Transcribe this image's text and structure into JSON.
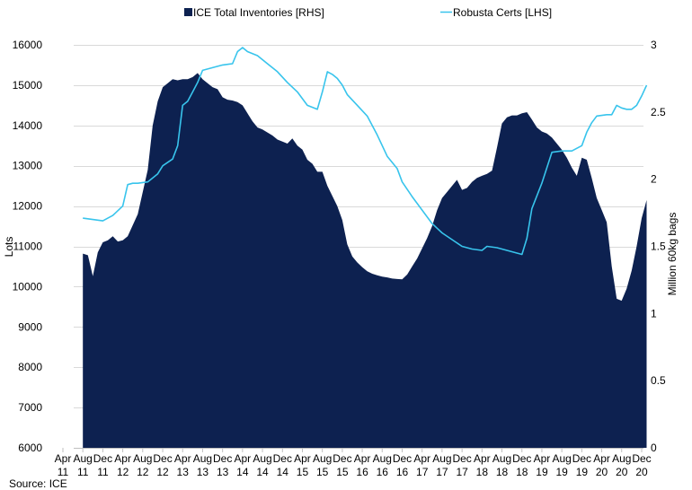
{
  "chart_data": {
    "type": "area",
    "source": "Source: ICE",
    "legend": {
      "placement": "top",
      "entries": [
        {
          "label": "ICE Total Inventories [RHS]",
          "color": "#0d2150",
          "kind": "area"
        },
        {
          "label": "Robusta Certs [LHS]",
          "color": "#38c4ec",
          "kind": "line"
        }
      ]
    },
    "left_axis": {
      "label": "Lots",
      "min": 6000,
      "max": 16000,
      "ticks": [
        6000,
        7000,
        8000,
        9000,
        10000,
        11000,
        12000,
        13000,
        14000,
        15000,
        16000
      ]
    },
    "right_axis": {
      "label": "Million 60kg bags",
      "min": 0,
      "max": 3,
      "ticks": [
        0,
        0.5,
        1,
        1.5,
        2,
        2.5,
        3
      ]
    },
    "x_axis": {
      "start": 2011.25,
      "end": 2020.917,
      "ticks": [
        {
          "month": "Apr",
          "year": "11",
          "t": 2011.25
        },
        {
          "month": "Aug",
          "year": "11",
          "t": 2011.583
        },
        {
          "month": "Dec",
          "year": "11",
          "t": 2011.917
        },
        {
          "month": "Apr",
          "year": "12",
          "t": 2012.25
        },
        {
          "month": "Aug",
          "year": "12",
          "t": 2012.583
        },
        {
          "month": "Dec",
          "year": "12",
          "t": 2012.917
        },
        {
          "month": "Apr",
          "year": "13",
          "t": 2013.25
        },
        {
          "month": "Aug",
          "year": "13",
          "t": 2013.583
        },
        {
          "month": "Dec",
          "year": "13",
          "t": 2013.917
        },
        {
          "month": "Apr",
          "year": "14",
          "t": 2014.25
        },
        {
          "month": "Aug",
          "year": "14",
          "t": 2014.583
        },
        {
          "month": "Dec",
          "year": "14",
          "t": 2014.917
        },
        {
          "month": "Apr",
          "year": "15",
          "t": 2015.25
        },
        {
          "month": "Aug",
          "year": "15",
          "t": 2015.583
        },
        {
          "month": "Dec",
          "year": "15",
          "t": 2015.917
        },
        {
          "month": "Apr",
          "year": "16",
          "t": 2016.25
        },
        {
          "month": "Aug",
          "year": "16",
          "t": 2016.583
        },
        {
          "month": "Dec",
          "year": "16",
          "t": 2016.917
        },
        {
          "month": "Apr",
          "year": "17",
          "t": 2017.25
        },
        {
          "month": "Aug",
          "year": "17",
          "t": 2017.583
        },
        {
          "month": "Dec",
          "year": "17",
          "t": 2017.917
        },
        {
          "month": "Apr",
          "year": "18",
          "t": 2018.25
        },
        {
          "month": "Aug",
          "year": "18",
          "t": 2018.583
        },
        {
          "month": "Dec",
          "year": "18",
          "t": 2018.917
        },
        {
          "month": "Apr",
          "year": "19",
          "t": 2019.25
        },
        {
          "month": "Aug",
          "year": "19",
          "t": 2019.583
        },
        {
          "month": "Dec",
          "year": "19",
          "t": 2019.917
        },
        {
          "month": "Apr",
          "year": "20",
          "t": 2020.25
        },
        {
          "month": "Aug",
          "year": "20",
          "t": 2020.583
        },
        {
          "month": "Dec",
          "year": "20",
          "t": 2020.917
        }
      ]
    },
    "grid": "horizontal",
    "series": [
      {
        "name": "ICE Total Inventories [RHS]",
        "axis": "left",
        "type": "area",
        "points": [
          [
            2011.583,
            10820
          ],
          [
            2011.667,
            10780
          ],
          [
            2011.75,
            10260
          ],
          [
            2011.833,
            10850
          ],
          [
            2011.917,
            11100
          ],
          [
            2012.0,
            11150
          ],
          [
            2012.083,
            11250
          ],
          [
            2012.167,
            11120
          ],
          [
            2012.25,
            11150
          ],
          [
            2012.333,
            11250
          ],
          [
            2012.5,
            11800
          ],
          [
            2012.667,
            12900
          ],
          [
            2012.75,
            14000
          ],
          [
            2012.833,
            14600
          ],
          [
            2012.917,
            14950
          ],
          [
            2013.0,
            15050
          ],
          [
            2013.083,
            15150
          ],
          [
            2013.167,
            15120
          ],
          [
            2013.25,
            15150
          ],
          [
            2013.333,
            15150
          ],
          [
            2013.417,
            15200
          ],
          [
            2013.5,
            15300
          ],
          [
            2013.583,
            15150
          ],
          [
            2013.667,
            15050
          ],
          [
            2013.75,
            14950
          ],
          [
            2013.833,
            14900
          ],
          [
            2013.917,
            14700
          ],
          [
            2014.0,
            14640
          ],
          [
            2014.083,
            14620
          ],
          [
            2014.167,
            14580
          ],
          [
            2014.25,
            14500
          ],
          [
            2014.333,
            14300
          ],
          [
            2014.417,
            14100
          ],
          [
            2014.5,
            13950
          ],
          [
            2014.583,
            13900
          ],
          [
            2014.75,
            13750
          ],
          [
            2014.833,
            13650
          ],
          [
            2014.917,
            13600
          ],
          [
            2015.0,
            13550
          ],
          [
            2015.083,
            13680
          ],
          [
            2015.167,
            13500
          ],
          [
            2015.25,
            13400
          ],
          [
            2015.333,
            13150
          ],
          [
            2015.417,
            13050
          ],
          [
            2015.5,
            12850
          ],
          [
            2015.583,
            12850
          ],
          [
            2015.667,
            12500
          ],
          [
            2015.75,
            12250
          ],
          [
            2015.833,
            12000
          ],
          [
            2015.917,
            11650
          ],
          [
            2016.0,
            11050
          ],
          [
            2016.083,
            10750
          ],
          [
            2016.167,
            10600
          ],
          [
            2016.25,
            10480
          ],
          [
            2016.333,
            10380
          ],
          [
            2016.417,
            10320
          ],
          [
            2016.5,
            10280
          ],
          [
            2016.583,
            10250
          ],
          [
            2016.667,
            10230
          ],
          [
            2016.75,
            10200
          ],
          [
            2016.833,
            10190
          ],
          [
            2016.917,
            10180
          ],
          [
            2017.0,
            10300
          ],
          [
            2017.083,
            10500
          ],
          [
            2017.167,
            10700
          ],
          [
            2017.25,
            10950
          ],
          [
            2017.333,
            11200
          ],
          [
            2017.417,
            11500
          ],
          [
            2017.5,
            11900
          ],
          [
            2017.583,
            12200
          ],
          [
            2017.667,
            12350
          ],
          [
            2017.75,
            12500
          ],
          [
            2017.833,
            12650
          ],
          [
            2017.917,
            12400
          ],
          [
            2018.0,
            12450
          ],
          [
            2018.083,
            12600
          ],
          [
            2018.167,
            12700
          ],
          [
            2018.25,
            12750
          ],
          [
            2018.333,
            12800
          ],
          [
            2018.417,
            12880
          ],
          [
            2018.5,
            13450
          ],
          [
            2018.583,
            14050
          ],
          [
            2018.667,
            14200
          ],
          [
            2018.75,
            14250
          ],
          [
            2018.833,
            14250
          ],
          [
            2018.917,
            14300
          ],
          [
            2019.0,
            14330
          ],
          [
            2019.083,
            14150
          ],
          [
            2019.167,
            13950
          ],
          [
            2019.25,
            13850
          ],
          [
            2019.333,
            13800
          ],
          [
            2019.417,
            13700
          ],
          [
            2019.5,
            13550
          ],
          [
            2019.583,
            13400
          ],
          [
            2019.667,
            13200
          ],
          [
            2019.75,
            12950
          ],
          [
            2019.833,
            12750
          ],
          [
            2019.917,
            13200
          ],
          [
            2020.0,
            13150
          ],
          [
            2020.083,
            12700
          ],
          [
            2020.167,
            12200
          ],
          [
            2020.25,
            11900
          ],
          [
            2020.333,
            11600
          ],
          [
            2020.417,
            10500
          ],
          [
            2020.5,
            9700
          ],
          [
            2020.583,
            9650
          ],
          [
            2020.667,
            9950
          ],
          [
            2020.75,
            10400
          ],
          [
            2020.833,
            11000
          ],
          [
            2020.917,
            11700
          ],
          [
            2021.0,
            12150
          ]
        ]
      },
      {
        "name": "Robusta Certs [LHS]",
        "axis": "right",
        "type": "line",
        "points": [
          [
            2011.583,
            1.71
          ],
          [
            2011.75,
            1.7
          ],
          [
            2011.917,
            1.69
          ],
          [
            2012.083,
            1.73
          ],
          [
            2012.25,
            1.8
          ],
          [
            2012.333,
            1.96
          ],
          [
            2012.417,
            1.97
          ],
          [
            2012.5,
            1.97
          ],
          [
            2012.667,
            1.98
          ],
          [
            2012.833,
            2.04
          ],
          [
            2012.917,
            2.1
          ],
          [
            2013.083,
            2.15
          ],
          [
            2013.167,
            2.25
          ],
          [
            2013.25,
            2.55
          ],
          [
            2013.333,
            2.58
          ],
          [
            2013.417,
            2.65
          ],
          [
            2013.5,
            2.72
          ],
          [
            2013.583,
            2.81
          ],
          [
            2013.75,
            2.83
          ],
          [
            2013.917,
            2.85
          ],
          [
            2014.083,
            2.86
          ],
          [
            2014.167,
            2.95
          ],
          [
            2014.25,
            2.98
          ],
          [
            2014.333,
            2.95
          ],
          [
            2014.5,
            2.92
          ],
          [
            2014.667,
            2.86
          ],
          [
            2014.833,
            2.8
          ],
          [
            2015.0,
            2.72
          ],
          [
            2015.167,
            2.65
          ],
          [
            2015.333,
            2.55
          ],
          [
            2015.5,
            2.52
          ],
          [
            2015.583,
            2.65
          ],
          [
            2015.667,
            2.8
          ],
          [
            2015.75,
            2.78
          ],
          [
            2015.833,
            2.75
          ],
          [
            2015.917,
            2.7
          ],
          [
            2016.0,
            2.63
          ],
          [
            2016.167,
            2.55
          ],
          [
            2016.333,
            2.47
          ],
          [
            2016.5,
            2.33
          ],
          [
            2016.667,
            2.17
          ],
          [
            2016.833,
            2.08
          ],
          [
            2016.917,
            1.98
          ],
          [
            2017.083,
            1.87
          ],
          [
            2017.25,
            1.77
          ],
          [
            2017.417,
            1.67
          ],
          [
            2017.583,
            1.6
          ],
          [
            2017.75,
            1.55
          ],
          [
            2017.917,
            1.5
          ],
          [
            2018.083,
            1.48
          ],
          [
            2018.25,
            1.47
          ],
          [
            2018.333,
            1.5
          ],
          [
            2018.5,
            1.49
          ],
          [
            2018.667,
            1.47
          ],
          [
            2018.833,
            1.45
          ],
          [
            2018.917,
            1.44
          ],
          [
            2019.0,
            1.56
          ],
          [
            2019.083,
            1.78
          ],
          [
            2019.25,
            1.97
          ],
          [
            2019.417,
            2.2
          ],
          [
            2019.583,
            2.21
          ],
          [
            2019.75,
            2.21
          ],
          [
            2019.917,
            2.25
          ],
          [
            2020.0,
            2.35
          ],
          [
            2020.083,
            2.42
          ],
          [
            2020.167,
            2.47
          ],
          [
            2020.333,
            2.48
          ],
          [
            2020.417,
            2.48
          ],
          [
            2020.5,
            2.55
          ],
          [
            2020.583,
            2.53
          ],
          [
            2020.667,
            2.52
          ],
          [
            2020.75,
            2.52
          ],
          [
            2020.833,
            2.55
          ],
          [
            2020.917,
            2.62
          ],
          [
            2021.0,
            2.7
          ]
        ]
      }
    ]
  }
}
